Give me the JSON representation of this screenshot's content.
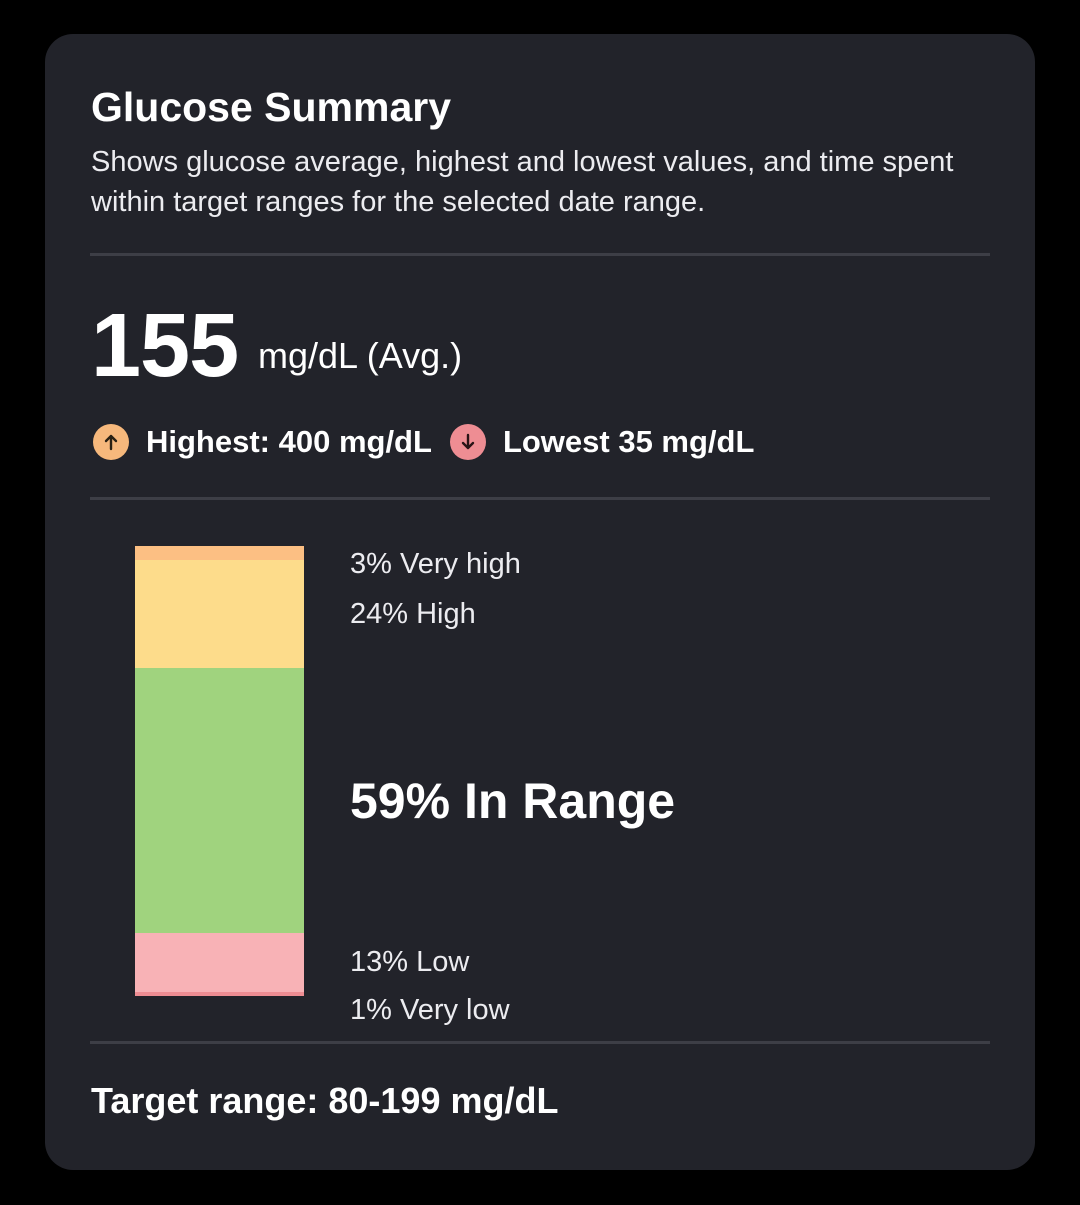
{
  "summary": {
    "title": "Glucose Summary",
    "description": "Shows glucose average, highest and lowest values, and time spent within target ranges for the selected date range.",
    "average_value": "155",
    "average_unit": "mg/dL (Avg.)",
    "highest_label": "Highest: 400 mg/dL",
    "lowest_label": "Lowest 35 mg/dL",
    "target_range": "Target range: 80-199 mg/dL"
  },
  "icons": {
    "highest": "arrow-up-icon",
    "lowest": "arrow-down-icon"
  },
  "colors": {
    "very_high": "#fcbf83",
    "high": "#fddc8b",
    "in_range": "#a0d37e",
    "low": "#f8b2b6",
    "very_low": "#ee8d93",
    "highest_badge": "#f6b87c",
    "lowest_badge": "#ee8d93"
  },
  "chart_data": {
    "type": "bar",
    "stacked": true,
    "segments": [
      {
        "key": "very_high",
        "percent": 3,
        "label": "3% Very high"
      },
      {
        "key": "high",
        "percent": 24,
        "label": "24% High"
      },
      {
        "key": "in_range",
        "percent": 59,
        "label": "59% In Range"
      },
      {
        "key": "low",
        "percent": 13,
        "label": "13% Low"
      },
      {
        "key": "very_low",
        "percent": 1,
        "label": "1% Very low"
      }
    ]
  }
}
